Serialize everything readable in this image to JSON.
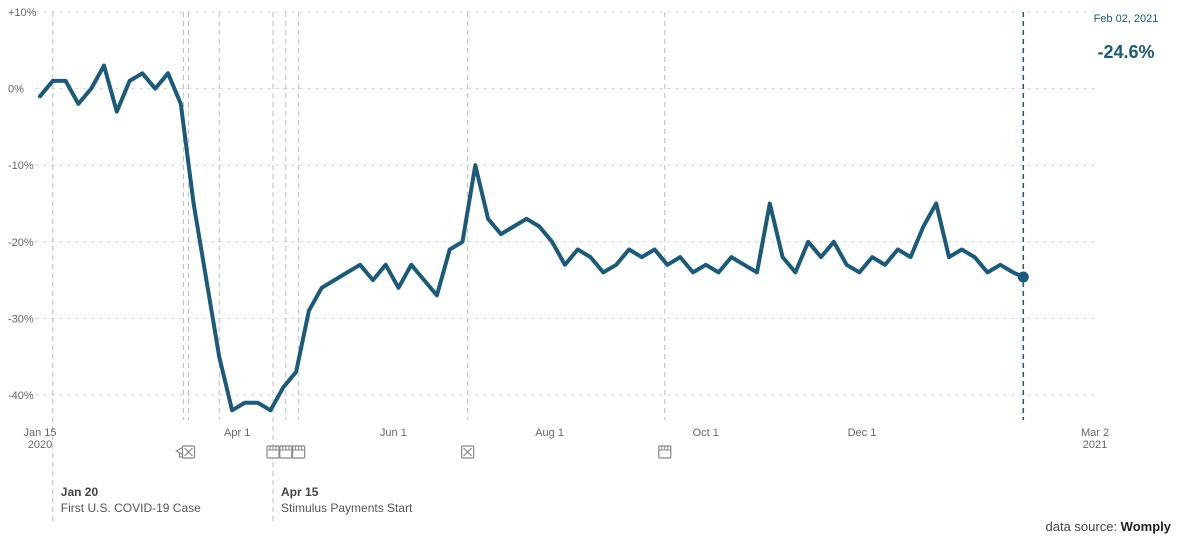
{
  "chart_data": {
    "type": "line",
    "ylim": [
      -45,
      10
    ],
    "xlim": [
      "2020-01-15",
      "2021-03-02"
    ],
    "yticks": [
      10,
      0,
      -10,
      -20,
      -30,
      -40
    ],
    "ytick_labels": [
      "+10%",
      "0%",
      "-10%",
      "-20%",
      "-30%",
      "-40%"
    ],
    "xticks": [
      {
        "date": "2020-01-15",
        "label": "Jan 15",
        "sub": "2020"
      },
      {
        "date": "2020-04-01",
        "label": "Apr 1",
        "sub": ""
      },
      {
        "date": "2020-06-01",
        "label": "Jun 1",
        "sub": ""
      },
      {
        "date": "2020-08-01",
        "label": "Aug 1",
        "sub": ""
      },
      {
        "date": "2020-10-01",
        "label": "Oct 1",
        "sub": ""
      },
      {
        "date": "2020-12-01",
        "label": "Dec 1",
        "sub": ""
      },
      {
        "date": "2021-03-02",
        "label": "Mar 2",
        "sub": "2021"
      }
    ],
    "grid": true,
    "line_color": "#1a5a7a",
    "series": [
      {
        "x": [
          "2020-01-15",
          "2020-01-20",
          "2020-01-25",
          "2020-01-30",
          "2020-02-04",
          "2020-02-09",
          "2020-02-14",
          "2020-02-19",
          "2020-02-24",
          "2020-02-29",
          "2020-03-05",
          "2020-03-10",
          "2020-03-15",
          "2020-03-20",
          "2020-03-25",
          "2020-03-30",
          "2020-04-04",
          "2020-04-09",
          "2020-04-14",
          "2020-04-19",
          "2020-04-24",
          "2020-04-29",
          "2020-05-04",
          "2020-05-09",
          "2020-05-14",
          "2020-05-19",
          "2020-05-24",
          "2020-05-29",
          "2020-06-03",
          "2020-06-08",
          "2020-06-13",
          "2020-06-18",
          "2020-06-23",
          "2020-06-28",
          "2020-06-30",
          "2020-07-03",
          "2020-07-08",
          "2020-07-13",
          "2020-07-18",
          "2020-07-23",
          "2020-07-28",
          "2020-08-02",
          "2020-08-07",
          "2020-08-12",
          "2020-08-17",
          "2020-08-22",
          "2020-08-27",
          "2020-09-01",
          "2020-09-06",
          "2020-09-11",
          "2020-09-16",
          "2020-09-21",
          "2020-09-26",
          "2020-10-01",
          "2020-10-06",
          "2020-10-11",
          "2020-10-16",
          "2020-10-21",
          "2020-10-26",
          "2020-10-31",
          "2020-11-05",
          "2020-11-10",
          "2020-11-15",
          "2020-11-20",
          "2020-11-25",
          "2020-11-30",
          "2020-12-05",
          "2020-12-10",
          "2020-12-15",
          "2020-12-20",
          "2020-12-25",
          "2020-12-30",
          "2021-01-04",
          "2021-01-09",
          "2021-01-14",
          "2021-01-19",
          "2021-01-24",
          "2021-01-29",
          "2021-02-02"
        ],
        "y": [
          -1,
          1,
          1,
          -2,
          0,
          3,
          -3,
          1,
          2,
          0,
          2,
          -2,
          -15,
          -25,
          -35,
          -42,
          -41,
          -41,
          -42,
          -39,
          -37,
          -29,
          -26,
          -25,
          -24,
          -23,
          -25,
          -23,
          -26,
          -23,
          -25,
          -27,
          -21,
          -20,
          -16,
          -10,
          -17,
          -19,
          -18,
          -17,
          -18,
          -20,
          -23,
          -21,
          -22,
          -24,
          -23,
          -21,
          -22,
          -21,
          -23,
          -22,
          -24,
          -23,
          -24,
          -22,
          -23,
          -24,
          -15,
          -22,
          -24,
          -20,
          -22,
          -20,
          -23,
          -24,
          -22,
          -23,
          -21,
          -22,
          -18,
          -15,
          -22,
          -21,
          -22,
          -24,
          -23,
          -24,
          -24.6
        ]
      }
    ],
    "highlight": {
      "date_label": "Feb 02, 2021",
      "value_label": "-24.6%",
      "date": "2021-02-02",
      "value": -24.6
    },
    "events": [
      {
        "date": "2020-01-20",
        "icon": "",
        "title": "Jan 20",
        "text": "First U.S. COVID-19 Case"
      },
      {
        "date": "2020-03-11",
        "icon": "school-icon",
        "title": "",
        "text": ""
      },
      {
        "date": "2020-03-13",
        "icon": "closure-icon",
        "title": "",
        "text": ""
      },
      {
        "date": "2020-03-25",
        "icon": "",
        "title": "",
        "text": ""
      },
      {
        "date": "2020-04-15",
        "icon": "store-icon",
        "title": "Apr 15",
        "text": "Stimulus Payments Start"
      },
      {
        "date": "2020-04-20",
        "icon": "store-icon",
        "title": "",
        "text": ""
      },
      {
        "date": "2020-04-25",
        "icon": "store-icon",
        "title": "",
        "text": ""
      },
      {
        "date": "2020-06-30",
        "icon": "closure-icon",
        "title": "",
        "text": ""
      },
      {
        "date": "2020-09-15",
        "icon": "store-icon",
        "title": "",
        "text": ""
      }
    ]
  },
  "source": {
    "prefix": "data source:",
    "name": "Womply"
  }
}
